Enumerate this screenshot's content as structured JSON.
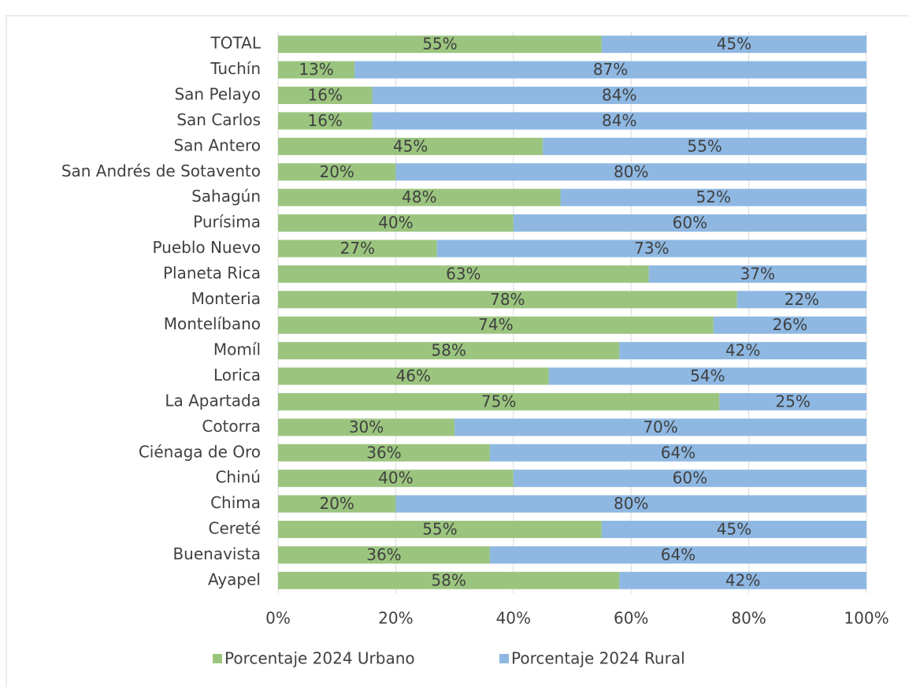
{
  "chart_data": {
    "type": "stacked_barh",
    "categories": [
      "TOTAL",
      "Tuchín",
      "San Pelayo",
      "San Carlos",
      "San Antero",
      "San Andrés de Sotavento",
      "Sahagún",
      "Purísima",
      "Pueblo Nuevo",
      "Planeta Rica",
      "Monteria",
      "Montelíbano",
      "Momíl",
      "Lorica",
      "La Apartada",
      "Cotorra",
      "Ciénaga de Oro",
      "Chinú",
      "Chima",
      "Cereté",
      "Buenavista",
      "Ayapel"
    ],
    "series": [
      {
        "name": "Porcentaje 2024 Urbano",
        "color": "#9bc57f",
        "values": [
          55,
          13,
          16,
          16,
          45,
          20,
          48,
          40,
          27,
          63,
          78,
          74,
          58,
          46,
          75,
          30,
          36,
          40,
          20,
          55,
          36,
          58
        ],
        "value_labels": [
          "55%",
          "13%",
          "16%",
          "16%",
          "45%",
          "20%",
          "48%",
          "40%",
          "27%",
          "63%",
          "78%",
          "74%",
          "58%",
          "46%",
          "75%",
          "30%",
          "36%",
          "40%",
          "20%",
          "55%",
          "36%",
          "58%"
        ]
      },
      {
        "name": "Porcentaje 2024 Rural",
        "color": "#8eb8e2",
        "values": [
          45,
          87,
          84,
          84,
          55,
          80,
          52,
          60,
          73,
          37,
          22,
          26,
          42,
          54,
          25,
          70,
          64,
          60,
          80,
          45,
          64,
          42
        ],
        "value_labels": [
          "45%",
          "87%",
          "84%",
          "84%",
          "55%",
          "80%",
          "52%",
          "60%",
          "73%",
          "37%",
          "22%",
          "26%",
          "42%",
          "54%",
          "25%",
          "70%",
          "64%",
          "60%",
          "80%",
          "45%",
          "64%",
          "42%"
        ]
      }
    ],
    "xlim": [
      0,
      100
    ],
    "xticks": [
      {
        "value": 0,
        "label": "0%"
      },
      {
        "value": 20,
        "label": "20%"
      },
      {
        "value": 40,
        "label": "40%"
      },
      {
        "value": 60,
        "label": "60%"
      },
      {
        "value": 80,
        "label": "80%"
      },
      {
        "value": 100,
        "label": "100%"
      }
    ],
    "grid": true,
    "legend": "bottom"
  }
}
